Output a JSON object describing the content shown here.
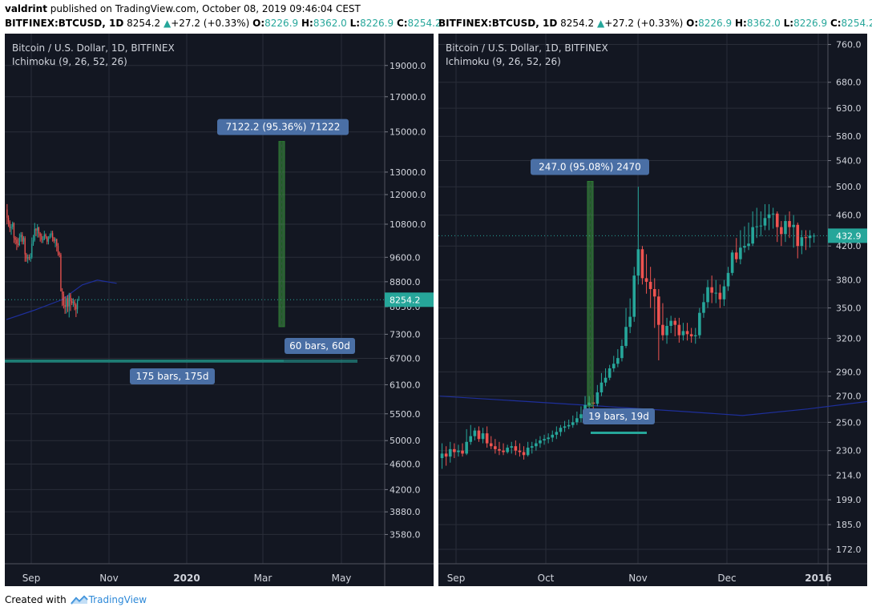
{
  "header": {
    "author": "valdrint",
    "published_text": " published on TradingView.com, October 08, 2019 09:46:04 CEST",
    "symbol": "BITFINEX:BTCUSD, 1D",
    "price": "8254.2",
    "change": "+27.2 (+0.33%)",
    "o_label": "O:",
    "o_value": "8226.9",
    "h_label": "H:",
    "h_value": "8362.0",
    "l_label": "L:",
    "l_value": "8226.9",
    "c_label": "C:",
    "c_value": "8254.2"
  },
  "footer": {
    "created_with": "Created with",
    "brand": "TradingView"
  },
  "colors": {
    "bg": "#131722",
    "grid": "#2a2e39",
    "up": "#26a69a",
    "down": "#ef5350",
    "measure": "#4e8a3a",
    "label": "#4a6fa5",
    "ichimoku": "#1e2f9b",
    "text": "#d1d4dc"
  },
  "chart_data": [
    {
      "type": "candlestick",
      "title": "Bitcoin / U.S. Dollar, 1D, BITFINEX",
      "indicator": "Ichimoku (9, 26, 52, 26)",
      "yscale": "log",
      "ylim": [
        3300,
        20800
      ],
      "y_ticks": [
        "19000.0",
        "17000.0",
        "15000.0",
        "13000.0",
        "12000.0",
        "10800.0",
        "9600.0",
        "8800.0",
        "8050.0",
        "7300.0",
        "6700.0",
        "6100.0",
        "5500.0",
        "5000.0",
        "4600.0",
        "4200.0",
        "3880.0",
        "3580.0"
      ],
      "x_ticks": [
        "Sep",
        "Nov",
        "2020",
        "Mar",
        "May"
      ],
      "last_price": "8254.2",
      "candles": {
        "start_date": "2019-08-13",
        "open": [
          11380,
          11050,
          10890,
          10650,
          10700,
          10840,
          10280,
          10220,
          10080,
          10030,
          10310,
          10400,
          10150,
          10280,
          9700,
          9560,
          9600,
          9570,
          9610,
          10070,
          10200,
          10620,
          10560,
          10680,
          10450,
          10360,
          10220,
          10230,
          10410,
          10330,
          10150,
          10270,
          10370,
          10460,
          10280,
          10170,
          10250,
          10000,
          9740,
          9690,
          8500,
          8420,
          8100,
          8050,
          8300,
          8060,
          8390,
          8210,
          8160,
          8200,
          8100,
          7980,
          8225
        ],
        "high": [
          11600,
          11150,
          10950,
          10800,
          10900,
          10870,
          10350,
          10320,
          10280,
          10450,
          10500,
          10500,
          10350,
          10350,
          9750,
          9700,
          9700,
          9740,
          10300,
          10400,
          10850,
          10650,
          10800,
          10700,
          10500,
          10450,
          10350,
          10550,
          10450,
          10350,
          10350,
          10450,
          10550,
          10550,
          10320,
          10300,
          10250,
          10100,
          9800,
          9750,
          8600,
          8500,
          8350,
          8350,
          8390,
          8460,
          8450,
          8300,
          8300,
          8260,
          8150,
          8280,
          8362
        ],
        "low": [
          10800,
          10700,
          10500,
          10400,
          10600,
          10100,
          10050,
          9850,
          9950,
          9990,
          10150,
          10050,
          10050,
          9450,
          9450,
          9400,
          9500,
          9450,
          9550,
          10000,
          10150,
          10350,
          10300,
          10300,
          10150,
          10100,
          10100,
          10200,
          10250,
          10050,
          10050,
          10250,
          10300,
          10150,
          10100,
          9950,
          9800,
          9650,
          9600,
          8500,
          8070,
          8000,
          7850,
          7860,
          7900,
          7750,
          7930,
          8100,
          8050,
          7950,
          7760,
          7860,
          8227
        ],
        "close": [
          11050,
          10890,
          10650,
          10700,
          10840,
          10280,
          10220,
          10080,
          10030,
          10310,
          10400,
          10150,
          10280,
          9700,
          9560,
          9600,
          9570,
          9610,
          10070,
          10200,
          10620,
          10560,
          10680,
          10450,
          10360,
          10220,
          10230,
          10410,
          10330,
          10150,
          10270,
          10370,
          10460,
          10280,
          10170,
          10250,
          10000,
          9740,
          9690,
          8500,
          8420,
          8100,
          8050,
          8300,
          8060,
          8390,
          8210,
          8160,
          8200,
          8100,
          7980,
          8225,
          8254
        ]
      },
      "ichimoku_line": [
        [
          0,
          7690
        ],
        [
          20,
          7950
        ],
        [
          40,
          8250
        ],
        [
          55,
          8700
        ],
        [
          66,
          8850
        ],
        [
          80,
          8750
        ]
      ],
      "measure": {
        "label": "7122.2 (95.36%) 71222",
        "from": 7500,
        "to": 14500
      },
      "bars_label_1": "60 bars, 60d",
      "bars_label_2": "175 bars, 175d"
    },
    {
      "type": "candlestick",
      "title": "Bitcoin / U.S. Dollar, 1D, BITFINEX",
      "indicator": "Ichimoku (9, 26, 52, 26)",
      "yscale": "log",
      "ylim": [
        168,
        770
      ],
      "y_ticks": [
        "760.0",
        "680.0",
        "630.0",
        "580.0",
        "540.0",
        "500.0",
        "460.0",
        "420.0",
        "380.0",
        "350.0",
        "320.0",
        "290.0",
        "270.0",
        "250.0",
        "230.0",
        "214.0",
        "199.0",
        "185.0",
        "172.0"
      ],
      "x_ticks": [
        "Sep",
        "Oct",
        "Nov",
        "Dec",
        "2016"
      ],
      "last_price": "432.9",
      "candles": {
        "start_date": "2015-08-24",
        "open": [
          225,
          228,
          226,
          231,
          229,
          230,
          228,
          236,
          240,
          244,
          238,
          242,
          235,
          233,
          231,
          230,
          229,
          232,
          233,
          230,
          229,
          227,
          232,
          233,
          235,
          237,
          238,
          239,
          241,
          243,
          246,
          247,
          248,
          250,
          253,
          256,
          263,
          265,
          264,
          273,
          281,
          285,
          293,
          297,
          302,
          313,
          331,
          341,
          385,
          416,
          382,
          378,
          370,
          362,
          333,
          323,
          332,
          337,
          333,
          323,
          327,
          324,
          322,
          323,
          345,
          356,
          372,
          366,
          366,
          359,
          373,
          388,
          412,
          404,
          418,
          420,
          423,
          444,
          445,
          446,
          456,
          461,
          462,
          444,
          435,
          452,
          444,
          447,
          420,
          431,
          430,
          433
        ],
        "high": [
          235,
          233,
          236,
          235,
          234,
          235,
          245,
          248,
          246,
          247,
          246,
          247,
          240,
          238,
          236,
          235,
          234,
          236,
          237,
          235,
          233,
          236,
          236,
          238,
          240,
          241,
          242,
          244,
          247,
          248,
          251,
          252,
          255,
          258,
          262,
          270,
          270,
          271,
          279,
          289,
          293,
          296,
          304,
          310,
          319,
          350,
          360,
          395,
          500,
          420,
          410,
          395,
          382,
          370,
          355,
          340,
          342,
          340,
          340,
          335,
          335,
          330,
          330,
          350,
          365,
          380,
          385,
          380,
          375,
          380,
          395,
          415,
          430,
          440,
          445,
          450,
          465,
          470,
          465,
          475,
          475,
          470,
          465,
          452,
          460,
          465,
          460,
          450,
          440,
          440,
          440,
          436
        ],
        "low": [
          218,
          220,
          222,
          225,
          226,
          226,
          227,
          234,
          237,
          236,
          235,
          232,
          231,
          228,
          227,
          227,
          228,
          228,
          227,
          226,
          224,
          226,
          228,
          230,
          232,
          234,
          235,
          236,
          238,
          240,
          243,
          245,
          246,
          248,
          250,
          254,
          259,
          260,
          262,
          270,
          278,
          283,
          290,
          294,
          299,
          311,
          325,
          336,
          375,
          375,
          365,
          350,
          330,
          300,
          318,
          315,
          325,
          322,
          316,
          318,
          318,
          316,
          315,
          320,
          340,
          350,
          355,
          355,
          350,
          352,
          368,
          385,
          400,
          398,
          412,
          415,
          420,
          430,
          432,
          440,
          440,
          442,
          425,
          420,
          425,
          430,
          418,
          405,
          410,
          415,
          418,
          424
        ],
        "close": [
          228,
          226,
          231,
          229,
          230,
          228,
          236,
          240,
          244,
          238,
          242,
          235,
          233,
          231,
          230,
          229,
          232,
          233,
          230,
          229,
          227,
          232,
          233,
          235,
          237,
          238,
          239,
          241,
          243,
          246,
          247,
          248,
          250,
          253,
          256,
          263,
          265,
          264,
          273,
          281,
          285,
          293,
          297,
          302,
          313,
          331,
          341,
          385,
          416,
          382,
          378,
          370,
          362,
          333,
          323,
          332,
          337,
          333,
          323,
          327,
          324,
          322,
          323,
          345,
          356,
          372,
          366,
          366,
          359,
          373,
          388,
          412,
          404,
          418,
          420,
          423,
          444,
          445,
          446,
          456,
          461,
          462,
          444,
          435,
          452,
          444,
          447,
          420,
          431,
          430,
          433,
          433
        ]
      },
      "ichimoku_line": [
        [
          0,
          270
        ],
        [
          20,
          266
        ],
        [
          40,
          262
        ],
        [
          60,
          258
        ],
        [
          74,
          255
        ],
        [
          90,
          260
        ],
        [
          110,
          268
        ],
        [
          125,
          276
        ],
        [
          140,
          285
        ],
        [
          160,
          298
        ],
        [
          180,
          310
        ],
        [
          200,
          318
        ],
        [
          220,
          325
        ],
        [
          240,
          330
        ],
        [
          260,
          333
        ],
        [
          265,
          334
        ]
      ],
      "measure": {
        "label": "247.0 (95.08%) 2470",
        "from": 262,
        "to": 508
      },
      "bars_label": "19 bars, 19d"
    }
  ]
}
